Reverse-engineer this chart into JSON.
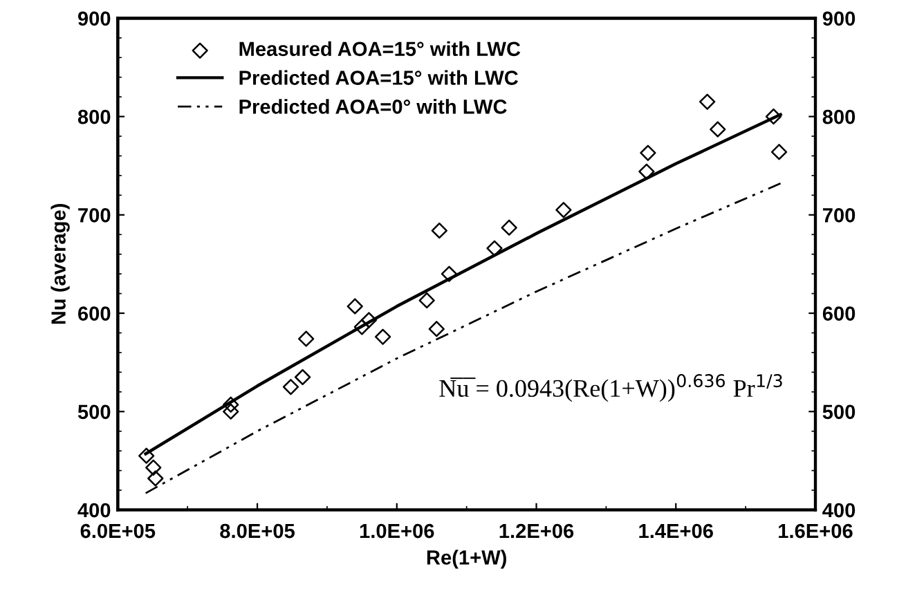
{
  "chart_data": {
    "type": "scatter",
    "xlabel": "Re(1+W)",
    "ylabel": "Nu (average)",
    "xlim": [
      600000,
      1600000
    ],
    "xticks": [
      {
        "value": 600000,
        "label": "6.0E+05"
      },
      {
        "value": 800000,
        "label": "8.0E+05"
      },
      {
        "value": 1000000,
        "label": "1.0E+06"
      },
      {
        "value": 1200000,
        "label": "1.2E+06"
      },
      {
        "value": 1400000,
        "label": "1.4E+06"
      },
      {
        "value": 1600000,
        "label": "1.6E+06"
      }
    ],
    "ylim": [
      400,
      900
    ],
    "yticks": [
      400,
      500,
      600,
      700,
      800,
      900
    ],
    "y2lim": [
      400,
      900
    ],
    "y2ticks": [
      400,
      500,
      600,
      700,
      800,
      900
    ],
    "grid": false,
    "legend": "top left",
    "annotations": [
      "N̅u̅ = 0.0943(Re(1+W))$^{0.636}$ Pr$^{1/3}$"
    ],
    "series": [
      {
        "name": "Measured AOA=15° with LWC",
        "marker": "diamond",
        "color": "#000000",
        "x": [
          641000,
          651000,
          654000,
          762000,
          762000,
          848000,
          865000,
          870000,
          940000,
          950000,
          960000,
          980000,
          1043000,
          1057000,
          1061000,
          1075000,
          1140000,
          1161000,
          1239000,
          1358000,
          1360000,
          1445000,
          1460000,
          1540000,
          1548000
        ],
        "values": [
          455,
          443,
          432,
          507,
          500,
          525,
          535,
          574,
          607,
          586,
          593,
          576,
          613,
          584,
          684,
          640,
          666,
          687,
          705,
          744,
          763,
          815,
          787,
          800,
          764
        ]
      },
      {
        "name": "Predicted AOA=15° with LWC",
        "type": "line",
        "marker": "none",
        "line_style": "solid",
        "color": "#000000",
        "x": [
          640000,
          800000,
          1000000,
          1200000,
          1400000,
          1550000
        ],
        "values": [
          457,
          526,
          607,
          681,
          752,
          802
        ]
      },
      {
        "name": "Predicted AOA=0° with LWC",
        "type": "line",
        "marker": "none",
        "line_style": "dashed",
        "color": "#000000",
        "x": [
          640000,
          800000,
          1000000,
          1200000,
          1400000,
          1550000
        ],
        "values": [
          417,
          480,
          554,
          622,
          686,
          732
        ]
      }
    ]
  }
}
